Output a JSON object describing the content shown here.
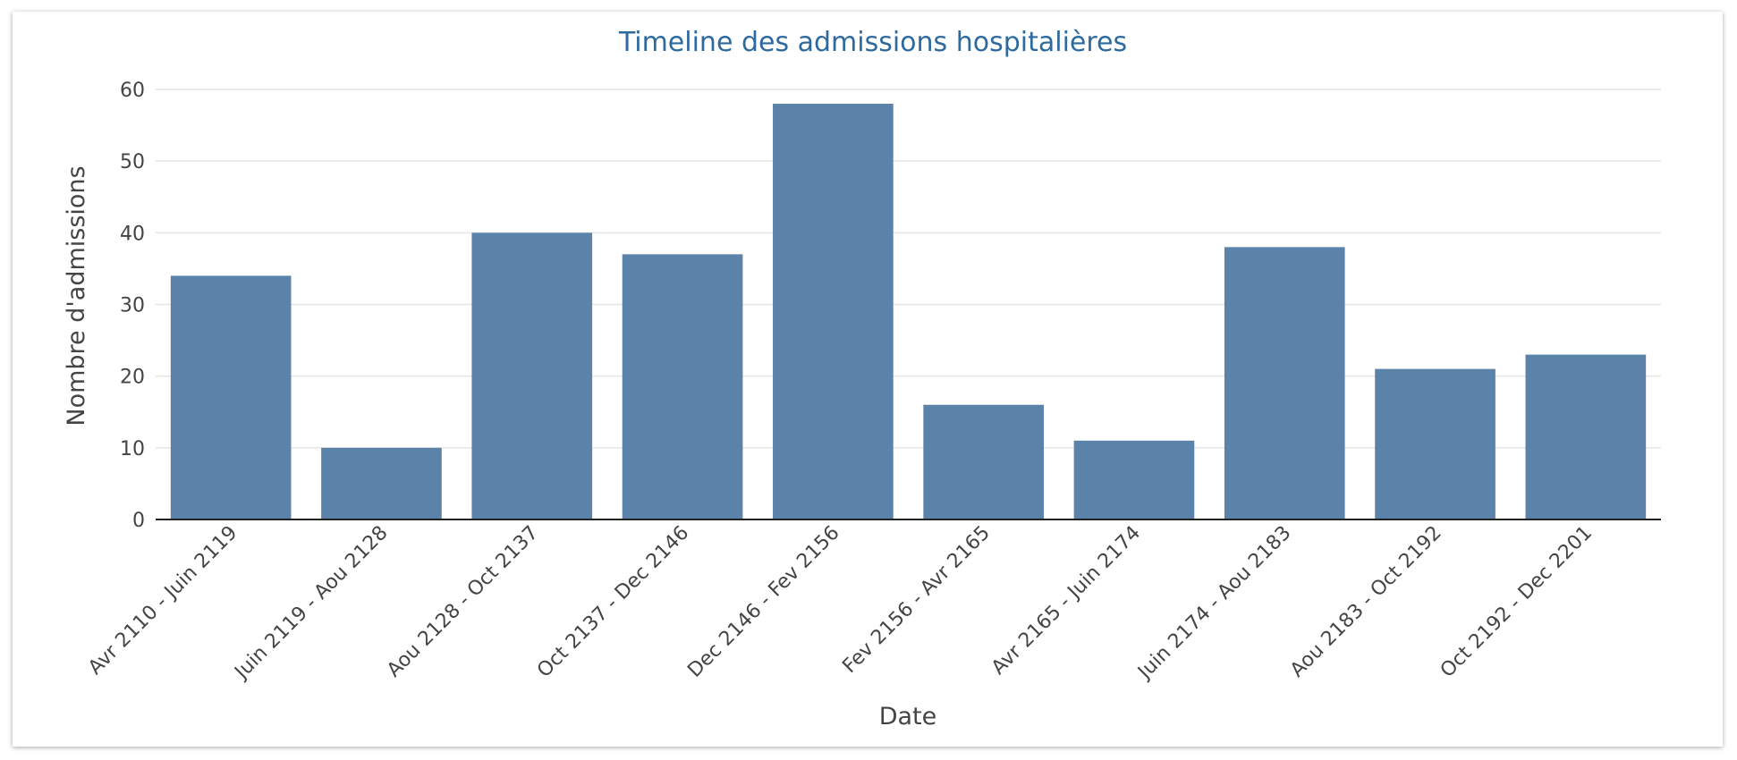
{
  "chart_data": {
    "type": "bar",
    "title": "Timeline des admissions hospitalières",
    "xlabel": "Date",
    "ylabel": "Nombre d'admissions",
    "categories": [
      "Avr 2110 - Juin 2119",
      "Juin 2119 - Aou 2128",
      "Aou 2128 - Oct 2137",
      "Oct 2137 - Dec 2146",
      "Dec 2146 - Fev 2156",
      "Fev 2156 - Avr 2165",
      "Avr 2165 - Juin 2174",
      "Juin 2174 - Aou 2183",
      "Aou 2183 - Oct 2192",
      "Oct 2192 - Dec 2201"
    ],
    "values": [
      34,
      10,
      40,
      37,
      58,
      16,
      11,
      38,
      21,
      23
    ],
    "ylim": [
      0,
      60
    ],
    "yticks": [
      0,
      10,
      20,
      30,
      40,
      50,
      60
    ],
    "grid": true,
    "bar_color": "#5b82a8",
    "title_color": "#2e6a9e"
  }
}
